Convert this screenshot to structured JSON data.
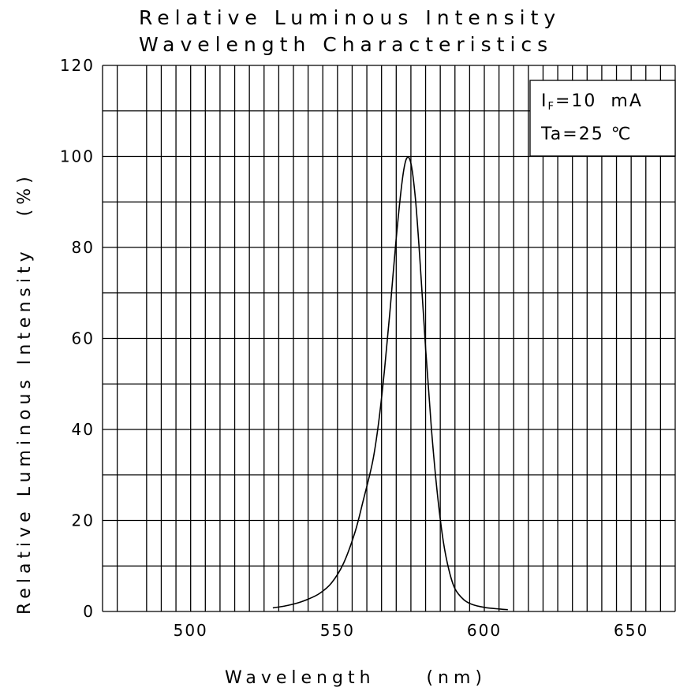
{
  "chart_data": {
    "type": "line",
    "title": "Relative Luminous Intensity",
    "subtitle": "Wavelength Characteristics",
    "xlabel": "Wavelength     (nm)",
    "ylabel": "Relative Luminous Intensity   (%)",
    "xlim": [
      470,
      665
    ],
    "ylim": [
      0,
      120
    ],
    "x_ticks": [
      500,
      550,
      600,
      650
    ],
    "y_ticks": [
      0,
      20,
      40,
      60,
      80,
      100,
      120
    ],
    "x_gridlines": [
      470,
      475,
      485,
      490,
      495,
      500,
      505,
      510,
      515,
      520,
      525,
      530,
      535,
      540,
      545,
      550,
      555,
      560,
      565,
      570,
      575,
      580,
      585,
      590,
      595,
      600,
      605,
      610,
      615,
      620,
      625,
      630,
      635,
      640,
      645,
      650,
      655,
      660,
      665
    ],
    "grid": true,
    "legend": "none",
    "annotation": {
      "line1_main": "I",
      "line1_sub": "F",
      "line1_rest": "=10  mA",
      "line2": "Ta=25 ℃"
    },
    "series": [
      {
        "x": [
          528,
          532,
          536,
          540,
          544,
          548,
          552,
          556,
          559,
          562,
          564,
          566,
          568,
          570,
          572,
          573.5,
          575,
          576.5,
          578,
          580,
          582,
          584,
          586,
          588,
          590,
          593,
          596,
          600,
          604,
          608
        ],
        "y": [
          0.8,
          1.2,
          1.8,
          2.7,
          4.0,
          6.3,
          10.5,
          17.5,
          25.0,
          33.0,
          41.5,
          53.0,
          67.0,
          82.0,
          94.5,
          99.5,
          98.5,
          91.0,
          78.0,
          58.0,
          40.0,
          26.0,
          15.5,
          9.0,
          5.0,
          2.6,
          1.5,
          0.9,
          0.6,
          0.4
        ]
      }
    ]
  }
}
